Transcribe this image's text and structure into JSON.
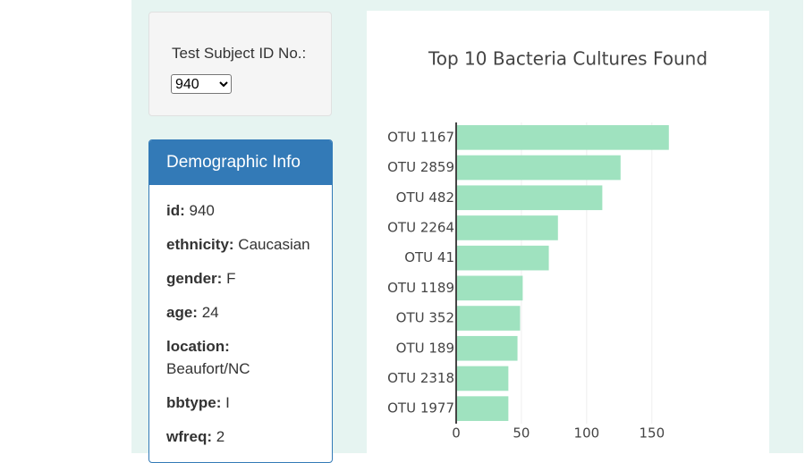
{
  "selector": {
    "label": "Test Subject ID No.:",
    "subject_id": 940
  },
  "demographic": {
    "title": "Demographic Info",
    "fields": [
      {
        "label": "id:",
        "value": 940
      },
      {
        "label": "ethnicity:",
        "value": "Caucasian"
      },
      {
        "label": "gender:",
        "value": "F"
      },
      {
        "label": "age:",
        "value": 24
      },
      {
        "label": "location:",
        "value": "Beaufort/NC"
      },
      {
        "label": "bbtype:",
        "value": "I"
      },
      {
        "label": "wfreq:",
        "value": 2
      }
    ]
  },
  "chart_data": {
    "type": "bar",
    "orientation": "horizontal",
    "title": "Top 10 Bacteria Cultures Found",
    "categories": [
      "OTU 1167",
      "OTU 2859",
      "OTU 482",
      "OTU 2264",
      "OTU 41",
      "OTU 1189",
      "OTU 352",
      "OTU 189",
      "OTU 2318",
      "OTU 1977"
    ],
    "values": [
      163,
      126,
      112,
      78,
      71,
      51,
      49,
      47,
      40,
      40
    ],
    "color": "#9fe2bf",
    "xlim": [
      0,
      170
    ],
    "xticks": [
      0,
      50,
      100,
      150
    ],
    "grid": true
  }
}
